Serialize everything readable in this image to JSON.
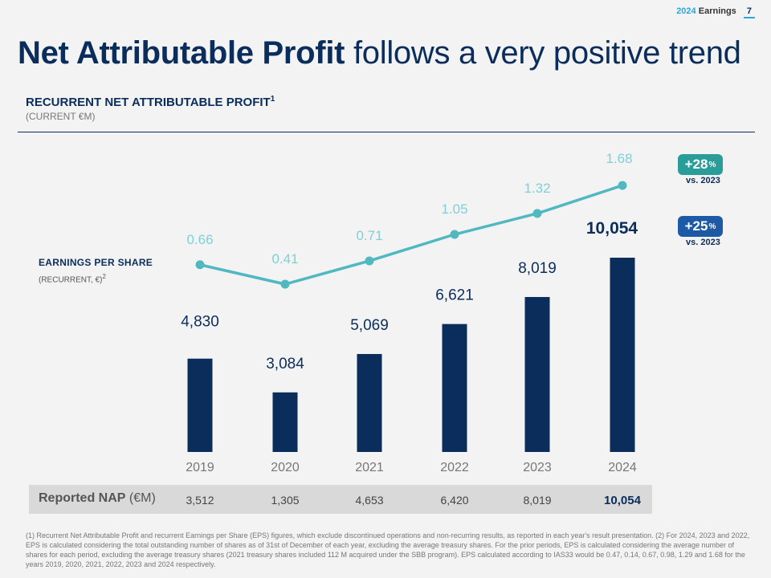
{
  "header": {
    "year": "2024",
    "label": "Earnings",
    "page": "7"
  },
  "title": {
    "bold": "Net Attributable Profit",
    "regular": " follows a very positive trend"
  },
  "subtitle": {
    "text": "RECURRENT NET ATTRIBUTABLE PROFIT",
    "sup": "1",
    "unit": "(CURRENT €M)"
  },
  "eps_label": {
    "text": "EARNINGS PER SHARE",
    "unit": "(RECURRENT, €)",
    "sup": "2"
  },
  "badges": {
    "eps": {
      "value": "+28",
      "pct": "%",
      "sub": "vs. 2023"
    },
    "nap": {
      "value": "+25",
      "pct": "%",
      "sub": "vs. 2023"
    }
  },
  "colors": {
    "navy": "#0b2d5b",
    "teal": "#4fb8c0",
    "badge_eps": "#2a9d9a",
    "badge_nap": "#1d5aa5"
  },
  "chart_data": {
    "type": "bar",
    "title": "Recurrent Net Attributable Profit (current €M)",
    "categories": [
      "2019",
      "2020",
      "2021",
      "2022",
      "2023",
      "2024"
    ],
    "series": [
      {
        "name": "Recurrent NAP (€M)",
        "type": "bar",
        "values": [
          4830,
          3084,
          5069,
          6621,
          8019,
          10054
        ],
        "labels": [
          "4,830",
          "3,084",
          "5,069",
          "6,621",
          "8,019",
          "10,054"
        ]
      },
      {
        "name": "Earnings per share (recurrent, €)",
        "type": "line",
        "values": [
          0.66,
          0.41,
          0.71,
          1.05,
          1.32,
          1.68
        ],
        "labels": [
          "0.66",
          "0.41",
          "0.71",
          "1.05",
          "1.32",
          "1.68"
        ]
      }
    ],
    "ylim": [
      0,
      10054
    ]
  },
  "table": {
    "label_bold": "Reported NAP",
    "label_unit": " (€M)",
    "values": [
      "3,512",
      "1,305",
      "4,653",
      "6,420",
      "8,019",
      "10,054"
    ]
  },
  "footnote": "(1) Recurrent Net Attributable Profit and recurrent Earnings per Share (EPS) figures, which exclude discontinued operations and non-recurring results, as reported in each year's result presentation. (2) For 2024, 2023 and 2022, EPS is calculated considering the total outstanding number of shares as of 31st of December of each year, excluding the average treasury shares.  For the prior periods, EPS is calculated considering the average number of shares for each period, excluding the average treasury shares (2021 treasury shares included 112 M acquired under the SBB program). EPS calculated according to IAS33 would be 0.47, 0.14, 0.67, 0.98, 1.29 and 1.68 for the years 2019, 2020, 2021, 2022, 2023 and 2024 respectively."
}
